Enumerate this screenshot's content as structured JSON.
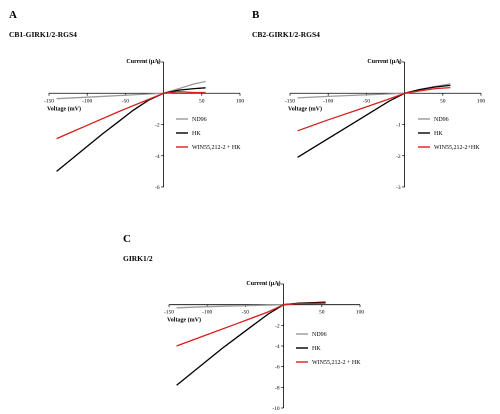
{
  "colors": {
    "nd96": "#9a9a9a",
    "hk": "#000000",
    "win": "#d81e1e",
    "axis": "#000000"
  },
  "chart_data": [
    {
      "type": "line",
      "panel_letter": "A",
      "title": "CB1-GIRK1/2-RGS4",
      "xlabel": "Voltage (mV)",
      "ylabel": "Current (µA)",
      "xlim": [
        -150,
        100
      ],
      "ylim": [
        -6,
        2
      ],
      "x_ticks": [
        -150,
        -100,
        -50,
        50,
        100
      ],
      "x_tick_labels": [
        "-150",
        "-100",
        "-50",
        "50",
        "100"
      ],
      "y_ticks": [
        -6,
        -4,
        -2,
        2
      ],
      "y_tick_labels": [
        "-6",
        "-4",
        "-2",
        "2"
      ],
      "legend": [
        "ND96",
        "HK",
        "WIN55,212-2 + HK"
      ],
      "series": [
        {
          "name": "ND96",
          "color_key": "nd96",
          "x": [
            -140,
            -100,
            -60,
            -20,
            0,
            20,
            40,
            55
          ],
          "y": [
            -0.35,
            -0.25,
            -0.15,
            -0.05,
            0,
            0.3,
            0.6,
            0.75
          ]
        },
        {
          "name": "HK",
          "color_key": "hk",
          "x": [
            -140,
            -120,
            -100,
            -80,
            -60,
            -40,
            -20,
            0,
            20,
            40,
            55
          ],
          "y": [
            -5.0,
            -4.2,
            -3.4,
            -2.6,
            -1.85,
            -1.1,
            -0.45,
            0,
            0.2,
            0.3,
            0.35
          ]
        },
        {
          "name": "WIN55,212-2 + HK",
          "color_key": "win",
          "x": [
            -140,
            -100,
            -60,
            -20,
            0,
            20,
            40,
            55
          ],
          "y": [
            -2.9,
            -2.05,
            -1.2,
            -0.4,
            0,
            0.1,
            0.05,
            0.05
          ]
        }
      ]
    },
    {
      "type": "line",
      "panel_letter": "B",
      "title": "CB2-GIRK1/2-RGS4",
      "xlabel": "Voltage (mV)",
      "ylabel": "Current (µA)",
      "xlim": [
        -150,
        100
      ],
      "ylim": [
        -3,
        1
      ],
      "x_ticks": [
        -150,
        -100,
        -50,
        50,
        100
      ],
      "x_tick_labels": [
        "-150",
        "-100",
        "-50",
        "50",
        "100"
      ],
      "y_ticks": [
        -3,
        -2,
        -1,
        1
      ],
      "y_tick_labels": [
        "-3",
        "-2",
        "-1",
        "1"
      ],
      "legend": [
        "ND96",
        "HK",
        "WIN55,212-2+HK"
      ],
      "series": [
        {
          "name": "ND96",
          "color_key": "nd96",
          "x": [
            -140,
            -100,
            -60,
            -20,
            0,
            20,
            40,
            60
          ],
          "y": [
            -0.15,
            -0.1,
            -0.06,
            -0.02,
            0,
            0.12,
            0.22,
            0.3
          ]
        },
        {
          "name": "HK",
          "color_key": "hk",
          "x": [
            -140,
            -120,
            -100,
            -80,
            -60,
            -40,
            -20,
            0,
            20,
            40,
            60
          ],
          "y": [
            -2.05,
            -1.75,
            -1.45,
            -1.15,
            -0.85,
            -0.55,
            -0.25,
            0,
            0.12,
            0.2,
            0.25
          ]
        },
        {
          "name": "WIN55,212-2+HK",
          "color_key": "win",
          "x": [
            -140,
            -100,
            -60,
            -20,
            0,
            20,
            40,
            60
          ],
          "y": [
            -1.2,
            -0.85,
            -0.52,
            -0.18,
            0,
            0.08,
            0.15,
            0.18
          ]
        }
      ]
    },
    {
      "type": "line",
      "panel_letter": "C",
      "title": "GIRK1/2",
      "xlabel": "Voltage (mV)",
      "ylabel": "Current (µA)",
      "xlim": [
        -150,
        100
      ],
      "ylim": [
        -10,
        2
      ],
      "x_ticks": [
        -150,
        -100,
        -50,
        50,
        100
      ],
      "x_tick_labels": [
        "-150",
        "-100",
        "-50",
        "50",
        "100"
      ],
      "y_ticks": [
        -10,
        -8,
        -6,
        -4,
        -2,
        2
      ],
      "y_tick_labels": [
        "-10",
        "-8",
        "-6",
        "-4",
        "-2",
        "2"
      ],
      "legend": [
        "ND96",
        "HK",
        "WIN55,212-2 + HK"
      ],
      "series": [
        {
          "name": "ND96",
          "color_key": "nd96",
          "x": [
            -140,
            -100,
            -60,
            -20,
            0,
            20,
            40,
            55
          ],
          "y": [
            -0.3,
            -0.2,
            -0.12,
            -0.04,
            0,
            0.1,
            0.2,
            0.25
          ]
        },
        {
          "name": "HK",
          "color_key": "hk",
          "x": [
            -140,
            -120,
            -100,
            -80,
            -60,
            -40,
            -20,
            0,
            20,
            40,
            55
          ],
          "y": [
            -7.8,
            -6.6,
            -5.4,
            -4.2,
            -3.1,
            -2.0,
            -0.9,
            0,
            0.15,
            0.2,
            0.25
          ]
        },
        {
          "name": "WIN55,212-2 + HK",
          "color_key": "win",
          "x": [
            -140,
            -100,
            -60,
            -20,
            0,
            20,
            40,
            55
          ],
          "y": [
            -4.0,
            -2.9,
            -1.8,
            -0.7,
            0,
            0.1,
            0.12,
            0.15
          ]
        }
      ]
    }
  ]
}
